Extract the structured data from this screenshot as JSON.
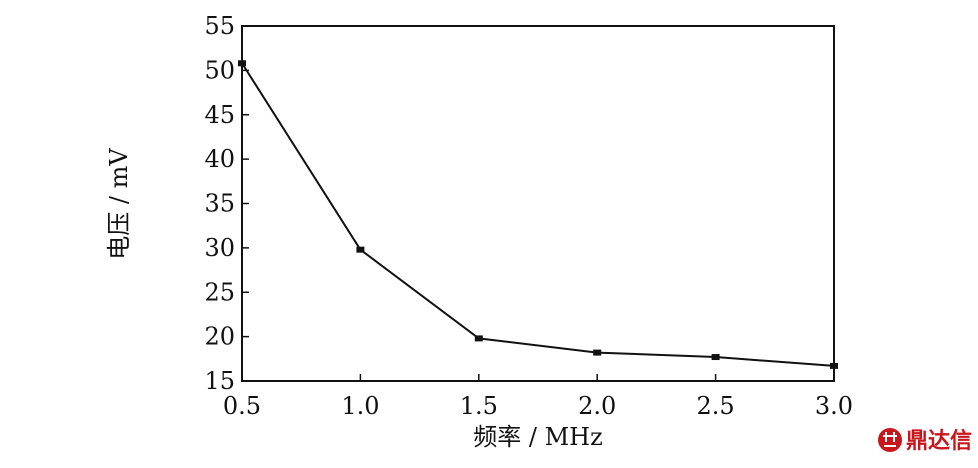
{
  "chart_data": {
    "type": "line",
    "title": "",
    "xlabel": "频率 / MHz",
    "ylabel": "电压 / mV",
    "x": [
      0.5,
      1.0,
      1.5,
      2.0,
      2.5,
      3.0
    ],
    "x_tick_labels": [
      "0.5",
      "1.0",
      "1.5",
      "2.0",
      "2.5",
      "3.0"
    ],
    "y_tick_values": [
      15,
      20,
      25,
      30,
      35,
      40,
      45,
      50,
      55
    ],
    "y_tick_labels": [
      "15",
      "20",
      "25",
      "30",
      "35",
      "40",
      "45",
      "50",
      "55"
    ],
    "xlim": [
      0.5,
      3.0
    ],
    "ylim": [
      15,
      55
    ],
    "grid": false,
    "series": [
      {
        "values": [
          50.8,
          29.8,
          19.8,
          18.2,
          17.7,
          16.7
        ],
        "color": "#111111",
        "marker": "square"
      }
    ]
  },
  "watermark": {
    "text": "鼎达信",
    "color": "#c8161d"
  }
}
